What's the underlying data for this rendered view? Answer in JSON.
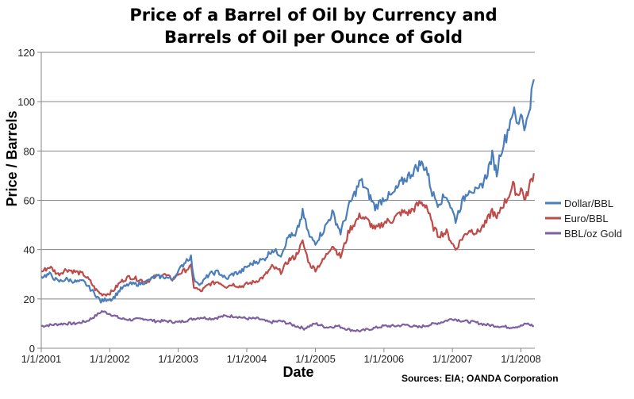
{
  "chart_data": {
    "type": "line",
    "title_lines": [
      "Price of a Barrel of Oil by Currency and",
      "Barrels of Oil per Ounce of Gold"
    ],
    "xlabel": "Date",
    "ylabel": "Price / Barrels",
    "source": "Sources: EIA; OANDA Corporation",
    "ylim": [
      0,
      120
    ],
    "yticks": [
      0,
      20,
      40,
      60,
      80,
      100,
      120
    ],
    "xlim": [
      "2001-01-01",
      "2008-03-15"
    ],
    "xticks": [
      "1/1/2001",
      "1/1/2002",
      "1/1/2003",
      "1/1/2004",
      "1/1/2005",
      "1/1/2006",
      "1/1/2007",
      "1/1/2008"
    ],
    "grid": "horizontal",
    "legend_position": "right",
    "series": [
      {
        "name": "Dollar/BBL",
        "color": "#4a7ebb",
        "points": [
          [
            "2001-01-01",
            29
          ],
          [
            "2001-02-15",
            30
          ],
          [
            "2001-04-01",
            27
          ],
          [
            "2001-05-15",
            28
          ],
          [
            "2001-07-01",
            27
          ],
          [
            "2001-08-15",
            27
          ],
          [
            "2001-09-20",
            24
          ],
          [
            "2001-10-15",
            22
          ],
          [
            "2001-11-15",
            19
          ],
          [
            "2001-12-20",
            20
          ],
          [
            "2002-01-15",
            20
          ],
          [
            "2002-03-01",
            24
          ],
          [
            "2002-04-15",
            26
          ],
          [
            "2002-06-01",
            26
          ],
          [
            "2002-07-15",
            27
          ],
          [
            "2002-09-01",
            29
          ],
          [
            "2002-10-15",
            29
          ],
          [
            "2002-12-01",
            28
          ],
          [
            "2002-12-31",
            31
          ],
          [
            "2003-02-15",
            36
          ],
          [
            "2003-03-10",
            37
          ],
          [
            "2003-03-25",
            28
          ],
          [
            "2003-05-01",
            26
          ],
          [
            "2003-06-15",
            30
          ],
          [
            "2003-08-01",
            31
          ],
          [
            "2003-09-15",
            28
          ],
          [
            "2003-10-15",
            30
          ],
          [
            "2003-12-01",
            31
          ],
          [
            "2004-01-01",
            33
          ],
          [
            "2004-02-15",
            35
          ],
          [
            "2004-04-01",
            36
          ],
          [
            "2004-05-15",
            40
          ],
          [
            "2004-07-01",
            38
          ],
          [
            "2004-08-15",
            46
          ],
          [
            "2004-09-15",
            45
          ],
          [
            "2004-10-25",
            55
          ],
          [
            "2004-12-01",
            45
          ],
          [
            "2005-01-01",
            43
          ],
          [
            "2005-02-15",
            48
          ],
          [
            "2005-04-01",
            55
          ],
          [
            "2005-05-15",
            47
          ],
          [
            "2005-07-01",
            58
          ],
          [
            "2005-08-30",
            68
          ],
          [
            "2005-10-15",
            62
          ],
          [
            "2005-11-15",
            57
          ],
          [
            "2006-01-01",
            61
          ],
          [
            "2006-02-15",
            62
          ],
          [
            "2006-04-01",
            67
          ],
          [
            "2006-05-15",
            70
          ],
          [
            "2006-07-15",
            75
          ],
          [
            "2006-08-15",
            73
          ],
          [
            "2006-09-15",
            63
          ],
          [
            "2006-10-15",
            59
          ],
          [
            "2006-12-01",
            62
          ],
          [
            "2007-01-18",
            52
          ],
          [
            "2007-02-15",
            58
          ],
          [
            "2007-04-01",
            65
          ],
          [
            "2007-05-15",
            63
          ],
          [
            "2007-07-01",
            70
          ],
          [
            "2007-08-01",
            78
          ],
          [
            "2007-08-25",
            71
          ],
          [
            "2007-09-15",
            80
          ],
          [
            "2007-10-15",
            86
          ],
          [
            "2007-11-20",
            97
          ],
          [
            "2007-12-15",
            90
          ],
          [
            "2008-01-01",
            96
          ],
          [
            "2008-01-25",
            89
          ],
          [
            "2008-02-20",
            100
          ],
          [
            "2008-03-10",
            109
          ]
        ]
      },
      {
        "name": "Euro/BBL",
        "color": "#be4b48",
        "points": [
          [
            "2001-01-01",
            31
          ],
          [
            "2001-02-15",
            33
          ],
          [
            "2001-04-01",
            30
          ],
          [
            "2001-05-15",
            32
          ],
          [
            "2001-07-01",
            31
          ],
          [
            "2001-08-15",
            30
          ],
          [
            "2001-09-20",
            27
          ],
          [
            "2001-10-15",
            24
          ],
          [
            "2001-11-15",
            22
          ],
          [
            "2001-12-20",
            22
          ],
          [
            "2002-01-15",
            23
          ],
          [
            "2002-03-01",
            27
          ],
          [
            "2002-04-15",
            29
          ],
          [
            "2002-06-01",
            28
          ],
          [
            "2002-07-15",
            27
          ],
          [
            "2002-09-01",
            29
          ],
          [
            "2002-10-15",
            30
          ],
          [
            "2002-12-01",
            28
          ],
          [
            "2002-12-31",
            30
          ],
          [
            "2003-02-15",
            32
          ],
          [
            "2003-03-10",
            33
          ],
          [
            "2003-03-25",
            25
          ],
          [
            "2003-05-01",
            23
          ],
          [
            "2003-06-15",
            26
          ],
          [
            "2003-08-01",
            27
          ],
          [
            "2003-09-15",
            25
          ],
          [
            "2003-10-15",
            26
          ],
          [
            "2003-12-01",
            25
          ],
          [
            "2004-01-01",
            26
          ],
          [
            "2004-02-15",
            27
          ],
          [
            "2004-04-01",
            29
          ],
          [
            "2004-05-15",
            33
          ],
          [
            "2004-07-01",
            31
          ],
          [
            "2004-08-15",
            36
          ],
          [
            "2004-09-15",
            37
          ],
          [
            "2004-10-25",
            43
          ],
          [
            "2004-12-01",
            34
          ],
          [
            "2005-01-01",
            32
          ],
          [
            "2005-02-15",
            36
          ],
          [
            "2005-04-01",
            42
          ],
          [
            "2005-05-15",
            37
          ],
          [
            "2005-07-01",
            48
          ],
          [
            "2005-08-30",
            54
          ],
          [
            "2005-10-15",
            51
          ],
          [
            "2005-11-15",
            48
          ],
          [
            "2006-01-01",
            51
          ],
          [
            "2006-02-15",
            52
          ],
          [
            "2006-04-01",
            55
          ],
          [
            "2006-05-15",
            55
          ],
          [
            "2006-07-15",
            59
          ],
          [
            "2006-08-15",
            58
          ],
          [
            "2006-09-15",
            50
          ],
          [
            "2006-10-15",
            46
          ],
          [
            "2006-12-01",
            47
          ],
          [
            "2007-01-18",
            40
          ],
          [
            "2007-02-15",
            44
          ],
          [
            "2007-04-01",
            48
          ],
          [
            "2007-05-15",
            47
          ],
          [
            "2007-07-01",
            51
          ],
          [
            "2007-08-01",
            56
          ],
          [
            "2007-08-25",
            52
          ],
          [
            "2007-09-15",
            57
          ],
          [
            "2007-10-15",
            60
          ],
          [
            "2007-11-20",
            66
          ],
          [
            "2007-12-15",
            62
          ],
          [
            "2008-01-01",
            65
          ],
          [
            "2008-01-25",
            60
          ],
          [
            "2008-02-20",
            67
          ],
          [
            "2008-03-10",
            71
          ]
        ]
      },
      {
        "name": "BBL/oz Gold",
        "color": "#7e5fa0",
        "points": [
          [
            "2001-01-01",
            9
          ],
          [
            "2001-03-01",
            9.5
          ],
          [
            "2001-05-01",
            10
          ],
          [
            "2001-07-01",
            10
          ],
          [
            "2001-09-01",
            11
          ],
          [
            "2001-10-15",
            13
          ],
          [
            "2001-11-20",
            15
          ],
          [
            "2002-01-01",
            14
          ],
          [
            "2002-03-01",
            12
          ],
          [
            "2002-05-01",
            11.5
          ],
          [
            "2002-07-01",
            12
          ],
          [
            "2002-09-01",
            11
          ],
          [
            "2002-11-01",
            11
          ],
          [
            "2003-01-01",
            10.5
          ],
          [
            "2003-03-25",
            12
          ],
          [
            "2003-05-01",
            12.5
          ],
          [
            "2003-07-01",
            12
          ],
          [
            "2003-09-01",
            13
          ],
          [
            "2003-11-01",
            13
          ],
          [
            "2004-01-01",
            12
          ],
          [
            "2004-03-01",
            12
          ],
          [
            "2004-05-01",
            10.5
          ],
          [
            "2004-07-01",
            11
          ],
          [
            "2004-09-01",
            9.5
          ],
          [
            "2004-11-01",
            8
          ],
          [
            "2005-01-01",
            10
          ],
          [
            "2005-03-01",
            8.5
          ],
          [
            "2005-05-01",
            9
          ],
          [
            "2005-07-01",
            7.5
          ],
          [
            "2005-09-01",
            7
          ],
          [
            "2005-11-01",
            8
          ],
          [
            "2006-01-01",
            9
          ],
          [
            "2006-03-01",
            9
          ],
          [
            "2006-05-01",
            9.5
          ],
          [
            "2006-07-01",
            8.5
          ],
          [
            "2006-09-01",
            9.5
          ],
          [
            "2006-11-01",
            10.5
          ],
          [
            "2007-01-01",
            12
          ],
          [
            "2007-03-01",
            11
          ],
          [
            "2007-05-01",
            10.5
          ],
          [
            "2007-07-01",
            9.5
          ],
          [
            "2007-09-01",
            9
          ],
          [
            "2007-11-01",
            8.5
          ],
          [
            "2008-01-01",
            9
          ],
          [
            "2008-02-01",
            10
          ],
          [
            "2008-03-10",
            9
          ]
        ]
      }
    ]
  }
}
